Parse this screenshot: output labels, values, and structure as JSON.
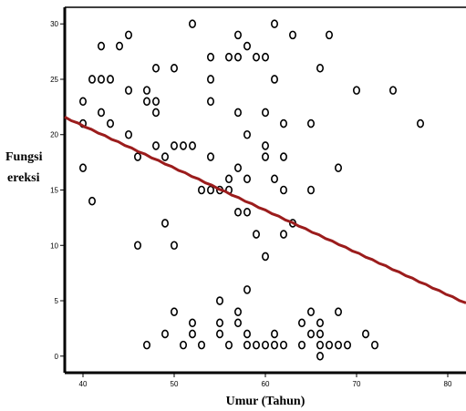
{
  "chart_data": {
    "type": "scatter",
    "title": "",
    "xlabel": "Umur (Tahun)",
    "ylabel": [
      "Fungsi",
      "ereksi"
    ],
    "xlim": [
      38,
      82
    ],
    "ylim": [
      -1.5,
      31.5
    ],
    "x_ticks": [
      40,
      50,
      60,
      70,
      80
    ],
    "y_ticks": [
      0,
      5,
      10,
      15,
      20,
      25,
      30
    ],
    "grid": false,
    "colors": {
      "points": "#000000",
      "fit_line": "#9b1c1c"
    },
    "points": [
      [
        40,
        23
      ],
      [
        40,
        21
      ],
      [
        40,
        17
      ],
      [
        41,
        25
      ],
      [
        41,
        14
      ],
      [
        42,
        28
      ],
      [
        42,
        25
      ],
      [
        42,
        22
      ],
      [
        43,
        25
      ],
      [
        43,
        21
      ],
      [
        44,
        28
      ],
      [
        45,
        29
      ],
      [
        45,
        24
      ],
      [
        45,
        20
      ],
      [
        46,
        18
      ],
      [
        46,
        10
      ],
      [
        47,
        24
      ],
      [
        47,
        23
      ],
      [
        47,
        1
      ],
      [
        48,
        26
      ],
      [
        48,
        23
      ],
      [
        48,
        22
      ],
      [
        48,
        19
      ],
      [
        49,
        18
      ],
      [
        49,
        12
      ],
      [
        49,
        2
      ],
      [
        50,
        26
      ],
      [
        50,
        19
      ],
      [
        50,
        10
      ],
      [
        50,
        4
      ],
      [
        51,
        19
      ],
      [
        51,
        1
      ],
      [
        52,
        30
      ],
      [
        52,
        19
      ],
      [
        52,
        3
      ],
      [
        52,
        2
      ],
      [
        53,
        15
      ],
      [
        53,
        1
      ],
      [
        54,
        27
      ],
      [
        54,
        25
      ],
      [
        54,
        23
      ],
      [
        54,
        18
      ],
      [
        54,
        15
      ],
      [
        55,
        15
      ],
      [
        55,
        5
      ],
      [
        55,
        3
      ],
      [
        55,
        2
      ],
      [
        56,
        27
      ],
      [
        56,
        16
      ],
      [
        56,
        15
      ],
      [
        56,
        1
      ],
      [
        57,
        29
      ],
      [
        57,
        27
      ],
      [
        57,
        22
      ],
      [
        57,
        17
      ],
      [
        57,
        13
      ],
      [
        57,
        4
      ],
      [
        57,
        3
      ],
      [
        58,
        28
      ],
      [
        58,
        20
      ],
      [
        58,
        16
      ],
      [
        58,
        13
      ],
      [
        58,
        6
      ],
      [
        58,
        2
      ],
      [
        58,
        1
      ],
      [
        59,
        27
      ],
      [
        59,
        11
      ],
      [
        59,
        1
      ],
      [
        60,
        27
      ],
      [
        60,
        22
      ],
      [
        60,
        19
      ],
      [
        60,
        18
      ],
      [
        60,
        9
      ],
      [
        60,
        1
      ],
      [
        61,
        30
      ],
      [
        61,
        25
      ],
      [
        61,
        16
      ],
      [
        61,
        2
      ],
      [
        61,
        1
      ],
      [
        62,
        21
      ],
      [
        62,
        18
      ],
      [
        62,
        15
      ],
      [
        62,
        11
      ],
      [
        62,
        1
      ],
      [
        63,
        29
      ],
      [
        63,
        12
      ],
      [
        64,
        1
      ],
      [
        64,
        3
      ],
      [
        65,
        21
      ],
      [
        65,
        15
      ],
      [
        65,
        4
      ],
      [
        65,
        2
      ],
      [
        66,
        26
      ],
      [
        66,
        3
      ],
      [
        66,
        2
      ],
      [
        66,
        1
      ],
      [
        66,
        0
      ],
      [
        67,
        29
      ],
      [
        67,
        1
      ],
      [
        68,
        17
      ],
      [
        68,
        4
      ],
      [
        68,
        1
      ],
      [
        69,
        1
      ],
      [
        70,
        24
      ],
      [
        71,
        2
      ],
      [
        72,
        1
      ],
      [
        74,
        24
      ],
      [
        77,
        21
      ]
    ],
    "fit_line": {
      "x": [
        38,
        82
      ],
      "y": [
        21.6,
        4.8
      ]
    }
  }
}
